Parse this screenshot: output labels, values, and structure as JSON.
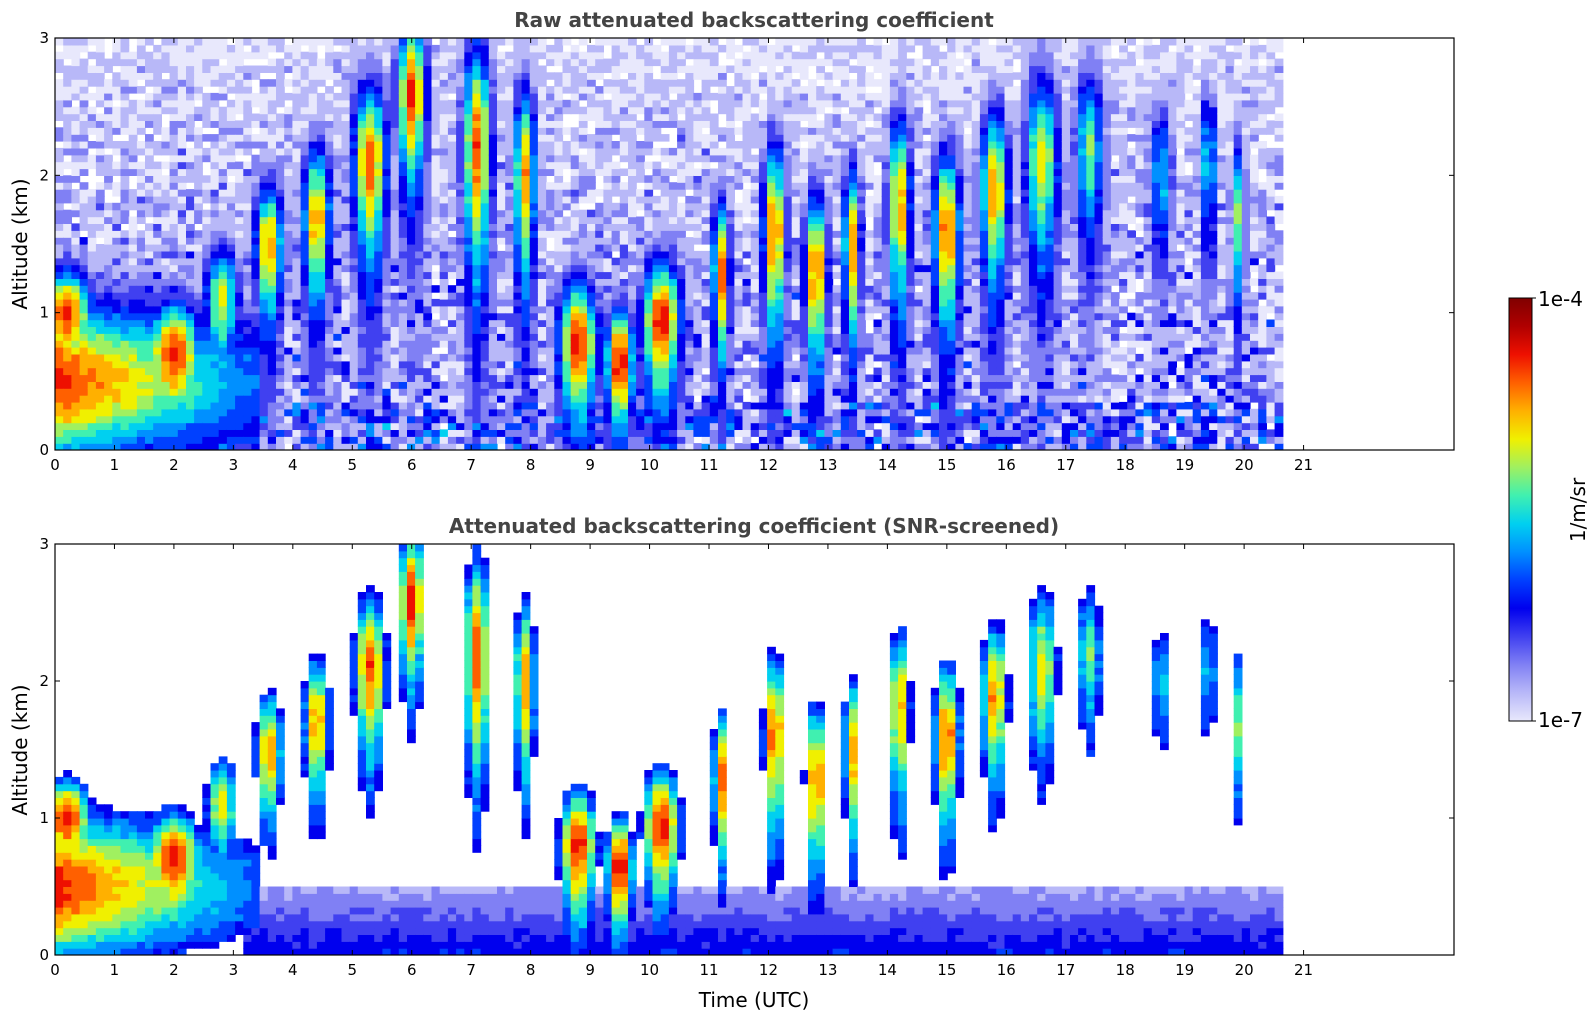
{
  "chart_data": [
    {
      "type": "heatmap",
      "title": "Raw attenuated backscattering coefficient",
      "xlabel": "",
      "ylabel": "Altitude (km)",
      "xlim": [
        0,
        24
      ],
      "ylim": [
        0,
        3
      ],
      "data_end_time": 20.65,
      "x_ticks": [
        "0",
        "1",
        "2",
        "3",
        "4",
        "5",
        "6",
        "7",
        "8",
        "9",
        "10",
        "11",
        "12",
        "13",
        "14",
        "15",
        "16",
        "17",
        "18",
        "19",
        "20",
        "21"
      ],
      "y_ticks": [
        "0",
        "1",
        "2",
        "3"
      ],
      "screened": false
    },
    {
      "type": "heatmap",
      "title": "Attenuated backscattering coefficient (SNR-screened)",
      "xlabel": "Time (UTC)",
      "ylabel": "Altitude (km)",
      "xlim": [
        0,
        24
      ],
      "ylim": [
        0,
        3
      ],
      "data_end_time": 20.65,
      "x_ticks": [
        "0",
        "1",
        "2",
        "3",
        "4",
        "5",
        "6",
        "7",
        "8",
        "9",
        "10",
        "11",
        "12",
        "13",
        "14",
        "15",
        "16",
        "17",
        "18",
        "19",
        "20",
        "21"
      ],
      "y_ticks": [
        "0",
        "1",
        "2",
        "3"
      ],
      "screened": true
    }
  ],
  "colorbar": {
    "label": "1/m/sr",
    "max_label": "1e-4",
    "min_label": "1e-7",
    "colors": [
      "#e8e8fc",
      "#b8b8f8",
      "#8080f4",
      "#4040f0",
      "#0000ee",
      "#0040ff",
      "#0090ff",
      "#00d0f0",
      "#40f0b0",
      "#a0f060",
      "#f0f000",
      "#ffb000",
      "#ff6000",
      "#ee1000",
      "#b00000",
      "#800000"
    ]
  }
}
